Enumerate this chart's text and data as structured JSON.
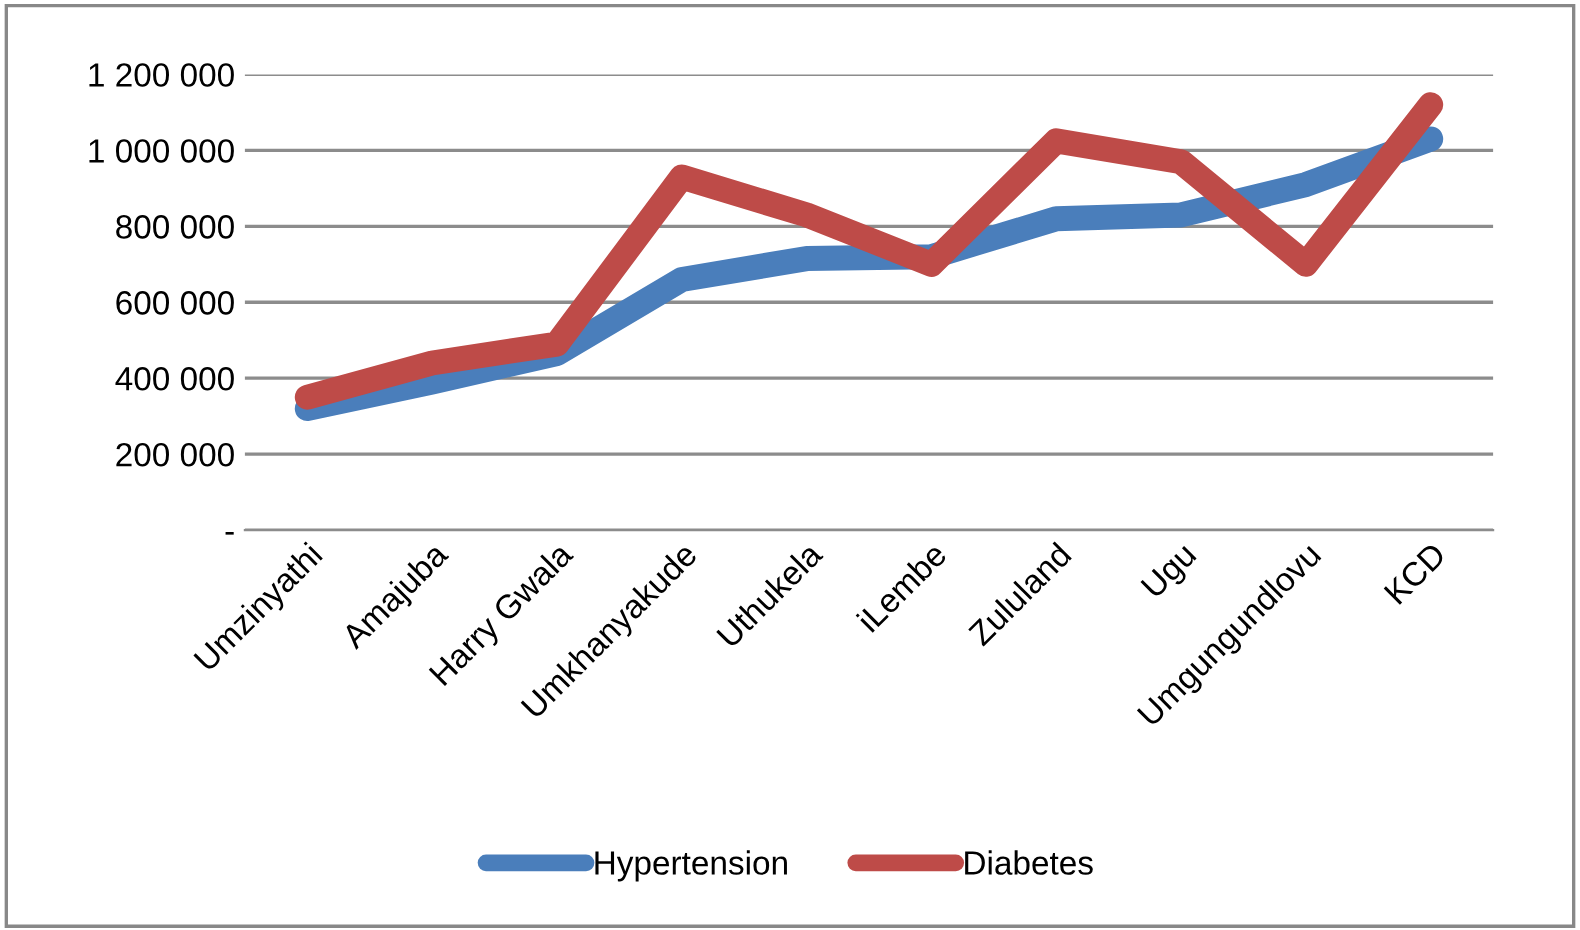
{
  "chart_data": {
    "type": "line",
    "categories": [
      "Umzinyathi",
      "Amajuba",
      "Harry Gwala",
      "Umkhanyakude",
      "Uthukela",
      "iLembe",
      "Zululand",
      "Ugu",
      "Umgungundlovu",
      "KCD"
    ],
    "series": [
      {
        "name": "Hypertension",
        "color": "#4a7ebb",
        "values": [
          320000,
          390000,
          465000,
          660000,
          715000,
          720000,
          820000,
          830000,
          910000,
          1030000
        ]
      },
      {
        "name": "Diabetes",
        "color": "#be4b48",
        "values": [
          350000,
          440000,
          490000,
          930000,
          830000,
          700000,
          1025000,
          970000,
          700000,
          1120000
        ]
      }
    ],
    "ylim": [
      0,
      1200000
    ],
    "yticks": [
      {
        "value": 0,
        "label": "-"
      },
      {
        "value": 200000,
        "label": "200 000"
      },
      {
        "value": 400000,
        "label": "400 000"
      },
      {
        "value": 600000,
        "label": "600 000"
      },
      {
        "value": 800000,
        "label": "800 000"
      },
      {
        "value": 1000000,
        "label": "1 000 000"
      },
      {
        "value": 1200000,
        "label": "1 200 000"
      }
    ],
    "grid": "y",
    "legend": "bottom",
    "line_style": "solid"
  }
}
